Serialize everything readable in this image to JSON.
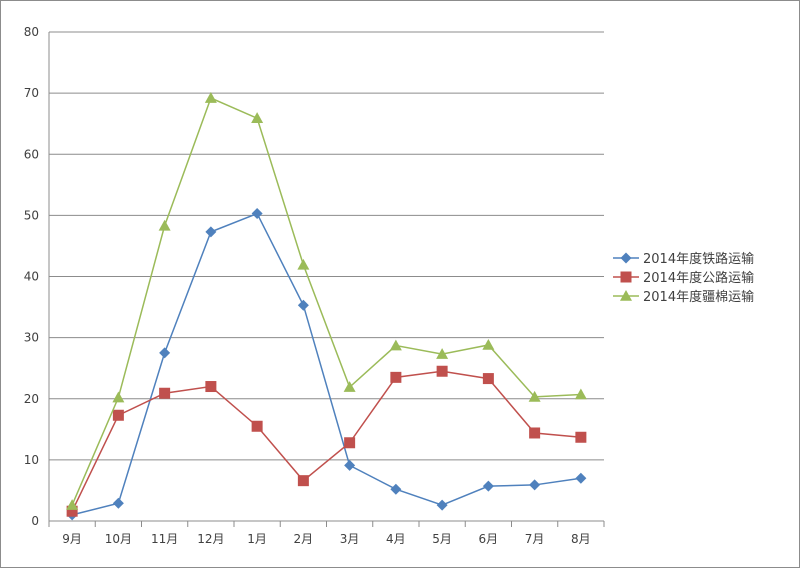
{
  "chart_data": {
    "type": "line",
    "title": "",
    "xlabel": "",
    "ylabel": "",
    "categories": [
      "9月",
      "10月",
      "11月",
      "12月",
      "1月",
      "2月",
      "3月",
      "4月",
      "5月",
      "6月",
      "7月",
      "8月"
    ],
    "ylim": [
      0,
      80
    ],
    "yticks": [
      0,
      10,
      20,
      30,
      40,
      50,
      60,
      70,
      80
    ],
    "grid": true,
    "legend_position": "right",
    "series": [
      {
        "name": "2014年度铁路运输",
        "color": "#4f81bd",
        "marker": "diamond",
        "values": [
          1.0,
          2.9,
          27.5,
          47.3,
          50.3,
          35.3,
          9.1,
          5.2,
          2.6,
          5.7,
          5.9,
          7.0
        ]
      },
      {
        "name": "2014年度公路运输",
        "color": "#c0504d",
        "marker": "square",
        "values": [
          1.6,
          17.3,
          20.9,
          22.0,
          15.5,
          6.6,
          12.8,
          23.5,
          24.5,
          23.3,
          14.4,
          13.7
        ]
      },
      {
        "name": "2014年度疆棉运输",
        "color": "#9bbb59",
        "marker": "triangle",
        "values": [
          2.6,
          20.2,
          48.3,
          69.2,
          65.9,
          41.9,
          21.9,
          28.7,
          27.3,
          28.8,
          20.3,
          20.7
        ]
      }
    ]
  }
}
